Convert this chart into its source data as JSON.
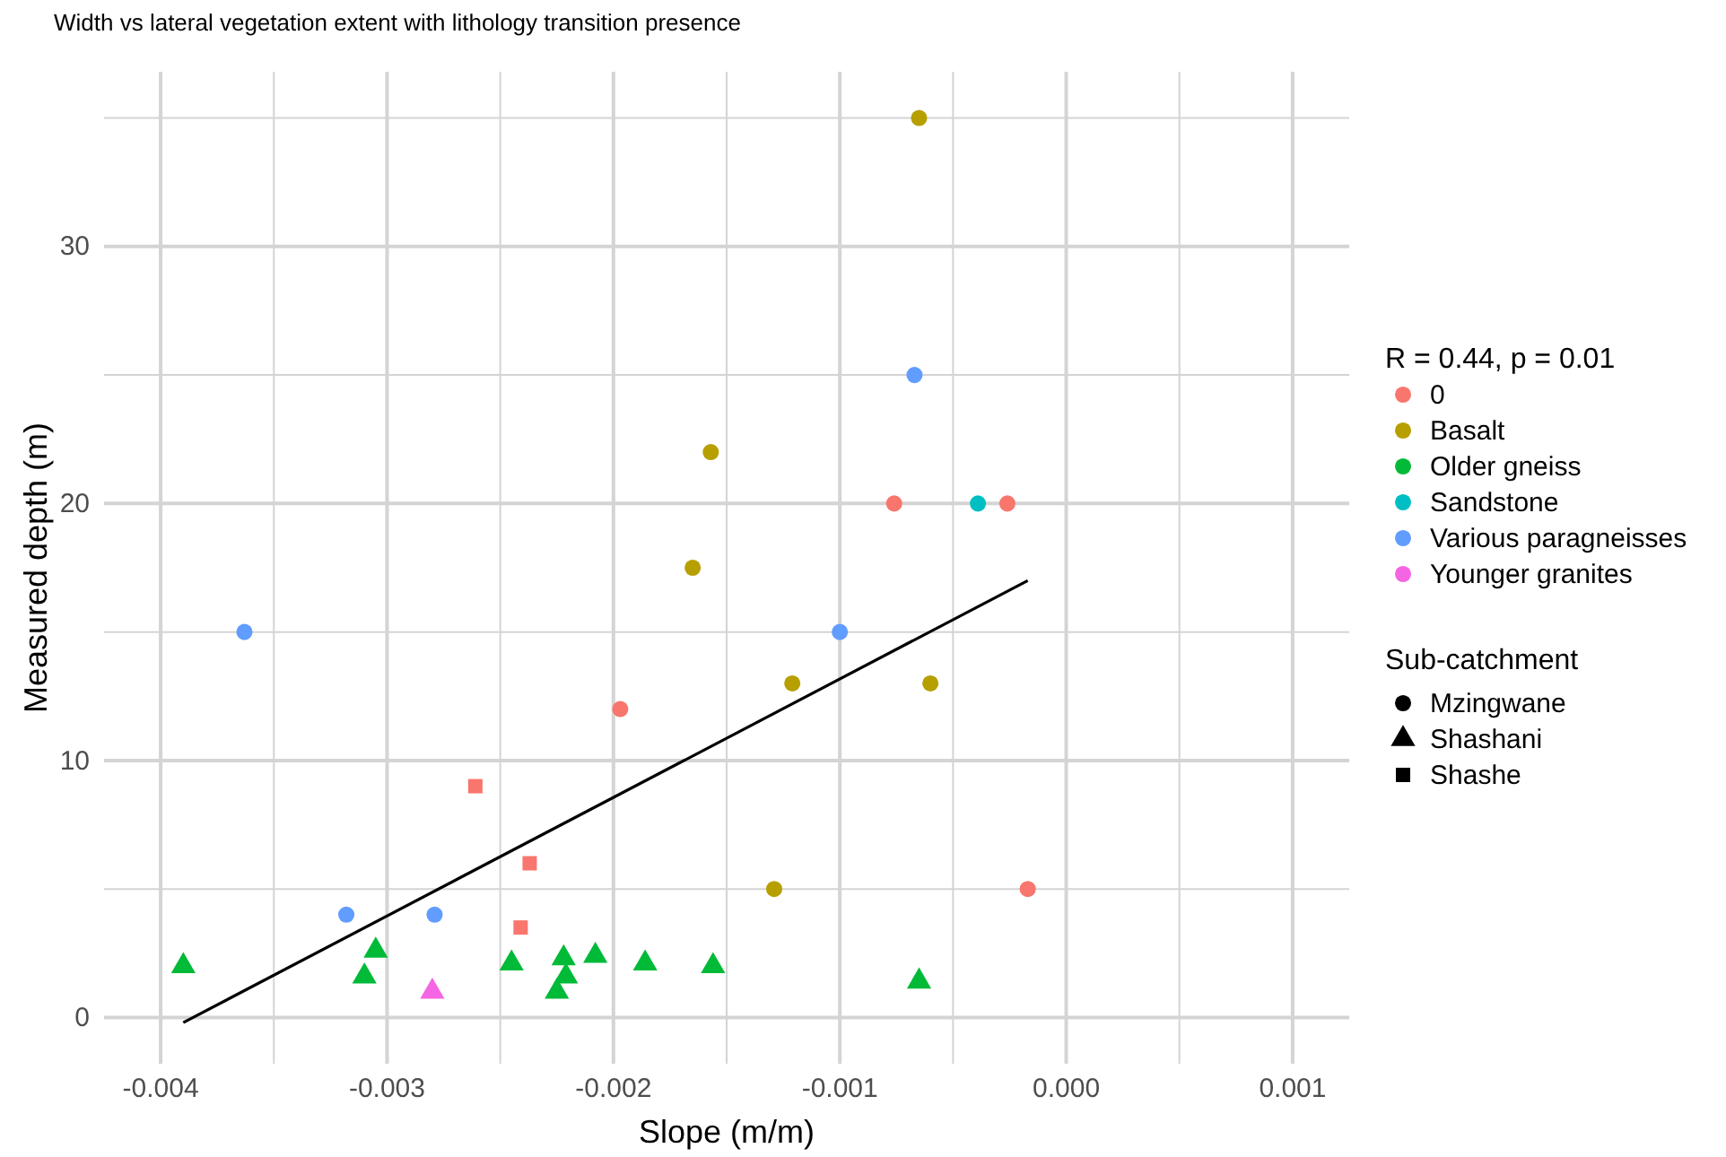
{
  "chart_data": {
    "type": "scatter",
    "title": "Width vs lateral vegetation extent with lithology transition presence",
    "xlabel": "Slope (m/m)",
    "ylabel": "Measured depth (m)",
    "legend_title": "R = 0.44, p = 0.01",
    "annotations": [
      "Sub-catchment",
      "Mzingwane",
      "Shashani",
      "Shashe"
    ],
    "xlim": [
      -0.00425,
      0.00125
    ],
    "ylim": [
      -1.8,
      36.8
    ],
    "xticks": [
      {
        "value": -0.004,
        "label": "-0.004"
      },
      {
        "value": -0.0035,
        "label": null
      },
      {
        "value": -0.003,
        "label": "-0.003"
      },
      {
        "value": -0.0025,
        "label": null
      },
      {
        "value": -0.002,
        "label": "-0.002"
      },
      {
        "value": -0.0015,
        "label": null
      },
      {
        "value": -0.001,
        "label": "-0.001"
      },
      {
        "value": -0.0005,
        "label": null
      },
      {
        "value": 0,
        "label": "0.000"
      },
      {
        "value": 0.0005,
        "label": null
      },
      {
        "value": 0.001,
        "label": "0.001"
      }
    ],
    "yticks": [
      0,
      {
        "value": 5,
        "label": null
      },
      10,
      {
        "value": 15,
        "label": null
      },
      20,
      {
        "value": 25,
        "label": null
      },
      30,
      {
        "value": 35,
        "label": null
      }
    ],
    "grid": true,
    "legend": "right",
    "series": [
      {
        "name": "0",
        "color": "#f8766d",
        "marker": "circle",
        "x": [
          -0.00197,
          -0.00076,
          -0.00026,
          -0.00017
        ],
        "values": [
          12,
          20,
          20,
          5
        ]
      },
      {
        "name": "Basalt",
        "color": "#b79f00",
        "marker": "circle",
        "x": [
          -0.00065,
          -0.00157,
          -0.00165,
          -0.00121,
          -0.0006,
          -0.00129
        ],
        "values": [
          35,
          22,
          17.5,
          13,
          13,
          5
        ]
      },
      {
        "name": "Older gneiss",
        "color": "#00ba38",
        "marker": "triangle",
        "x": [
          -0.0039,
          -0.00305,
          -0.0031,
          -0.00245,
          -0.00222,
          -0.00221,
          -0.00225,
          -0.00208,
          -0.00186,
          -0.00156,
          -0.00065
        ],
        "values": [
          2,
          2.6,
          1.6,
          2.1,
          2.3,
          1.6,
          1,
          2.4,
          2.1,
          2,
          1.4
        ]
      },
      {
        "name": "0",
        "color": "#f8766d",
        "marker": "square",
        "x": [
          -0.00261,
          -0.00237,
          -0.00241
        ],
        "values": [
          9,
          6,
          3.5
        ]
      },
      {
        "name": "Sandstone",
        "color": "#00bfc4",
        "marker": "circle",
        "x": [
          -0.00039
        ],
        "values": [
          20
        ]
      },
      {
        "name": "Various paragneisses",
        "color": "#619cff",
        "marker": "circle",
        "x": [
          -0.00363,
          -0.00067,
          -0.001,
          -0.00318,
          -0.00279
        ],
        "values": [
          15,
          25,
          15,
          4,
          4
        ]
      },
      {
        "name": "Younger granites",
        "color": "#f564e3",
        "marker": "triangle",
        "x": [
          -0.0028
        ],
        "values": [
          1
        ]
      },
      {
        "type": "line",
        "color": "#000000",
        "marker": "none",
        "x": [
          -0.0039,
          -0.00017
        ],
        "values": [
          -0.2,
          17
        ]
      }
    ]
  }
}
